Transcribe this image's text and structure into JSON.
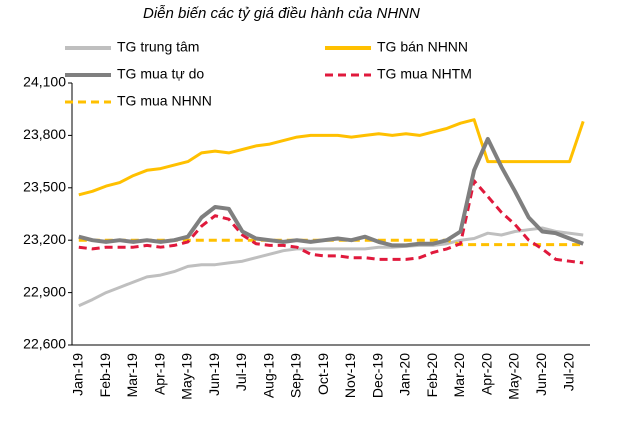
{
  "chart_data": {
    "type": "line",
    "title": "Diễn biến các tỷ giá điều hành của NHNN",
    "categories": [
      "Jan-19",
      null,
      "Feb-19",
      null,
      "Mar-19",
      null,
      "Apr-19",
      null,
      "May-19",
      null,
      "Jun-19",
      null,
      "Jul-19",
      null,
      "Aug-19",
      null,
      "Sep-19",
      null,
      "Oct-19",
      null,
      "Nov-19",
      null,
      "Dec-19",
      null,
      "Jan-20",
      null,
      "Feb-20",
      null,
      "Mar-20",
      null,
      "Apr-20",
      null,
      "May-20",
      null,
      "Jun-20",
      null,
      "Jul-20",
      null
    ],
    "ylim": [
      22600,
      24100
    ],
    "yticks": [
      {
        "value": 22600,
        "label": "22,600"
      },
      {
        "value": 22900,
        "label": "22,900"
      },
      {
        "value": 23200,
        "label": "23,200"
      },
      {
        "value": 23500,
        "label": "23,500"
      },
      {
        "value": 23800,
        "label": "23,800"
      },
      {
        "value": 24100,
        "label": "24,100"
      }
    ],
    "grid": false,
    "series": [
      {
        "name": "TG trung tâm",
        "color": "#bfbfbf",
        "dashed": false,
        "values": [
          22825,
          22860,
          22900,
          22930,
          22960,
          22990,
          23000,
          23020,
          23050,
          23060,
          23060,
          23070,
          23080,
          23100,
          23120,
          23140,
          23150,
          23150,
          23150,
          23150,
          23150,
          23150,
          23160,
          23160,
          23165,
          23170,
          23170,
          23180,
          23200,
          23210,
          23240,
          23230,
          23250,
          23260,
          23270,
          23250,
          23240,
          23230
        ]
      },
      {
        "name": "TG bán NHNN",
        "color": "#ffc000",
        "dashed": false,
        "values": [
          23460,
          23480,
          23510,
          23530,
          23570,
          23600,
          23610,
          23630,
          23650,
          23700,
          23710,
          23700,
          23720,
          23740,
          23750,
          23770,
          23790,
          23800,
          23800,
          23800,
          23790,
          23800,
          23810,
          23800,
          23810,
          23800,
          23820,
          23840,
          23870,
          23890,
          23650,
          23650,
          23650,
          23650,
          23650,
          23650,
          23650,
          23880
        ]
      },
      {
        "name": "TG mua tự do",
        "color": "#7f7f7f",
        "dashed": false,
        "values": [
          23220,
          23200,
          23190,
          23200,
          23190,
          23200,
          23190,
          23200,
          23220,
          23330,
          23390,
          23380,
          23250,
          23210,
          23200,
          23190,
          23200,
          23190,
          23200,
          23210,
          23200,
          23220,
          23190,
          23170,
          23170,
          23180,
          23180,
          23200,
          23250,
          23600,
          23780,
          23620,
          23480,
          23330,
          23250,
          23240,
          23210,
          23180
        ]
      },
      {
        "name": "TG mua NHTM",
        "color": "#e0193c",
        "dashed": true,
        "values": [
          23160,
          23150,
          23160,
          23160,
          23160,
          23170,
          23160,
          23170,
          23190,
          23280,
          23340,
          23320,
          23230,
          23180,
          23170,
          23170,
          23160,
          23120,
          23110,
          23110,
          23100,
          23100,
          23090,
          23090,
          23090,
          23100,
          23130,
          23150,
          23180,
          23540,
          23450,
          23360,
          23290,
          23200,
          23150,
          23090,
          23080,
          23070
        ]
      },
      {
        "name": "TG mua NHNN",
        "color": "#ffc000",
        "dashed": true,
        "values": [
          23200,
          23200,
          23200,
          23200,
          23200,
          23200,
          23200,
          23200,
          23200,
          23200,
          23200,
          23200,
          23200,
          23200,
          23200,
          23200,
          23200,
          23200,
          23200,
          23200,
          23200,
          23200,
          23200,
          23200,
          23200,
          23200,
          23200,
          23200,
          23175,
          23175,
          23175,
          23175,
          23175,
          23175,
          23175,
          23175,
          23175,
          23175
        ]
      }
    ]
  }
}
